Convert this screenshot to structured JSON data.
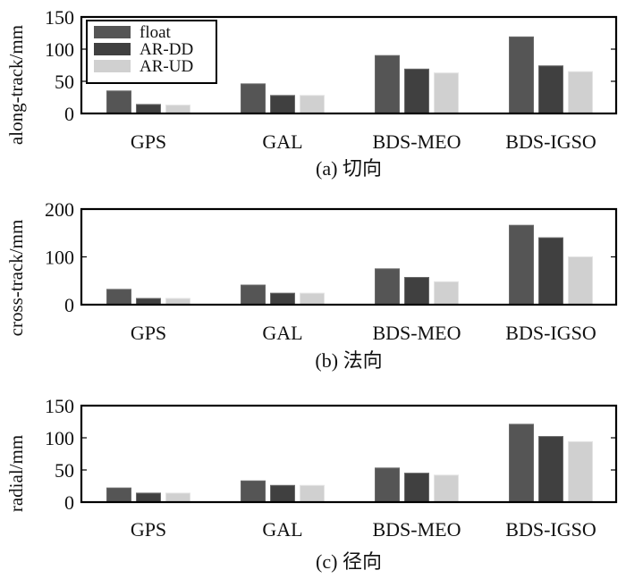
{
  "chart_data": [
    {
      "type": "bar",
      "title": "",
      "caption": "(a) 切向",
      "xlabel": "",
      "ylabel": "along-track/mm",
      "ylim": [
        0,
        150
      ],
      "yticks": [
        0,
        50,
        100,
        150
      ],
      "categories": [
        "GPS",
        "GAL",
        "BDS-MEO",
        "BDS-IGSO"
      ],
      "legend": {
        "placement": "top-left",
        "entries": [
          "float",
          "AR-DD",
          "AR-UD"
        ]
      },
      "series": [
        {
          "name": "float",
          "color": "#555555",
          "values": [
            35,
            46,
            90,
            119
          ]
        },
        {
          "name": "AR-DD",
          "color": "#404040",
          "values": [
            14,
            28,
            69,
            74
          ]
        },
        {
          "name": "AR-UD",
          "color": "#d0d0d0",
          "values": [
            13,
            28,
            63,
            65
          ]
        }
      ],
      "grid": false
    },
    {
      "type": "bar",
      "title": "",
      "caption": "(b) 法向",
      "xlabel": "",
      "ylabel": "cross-track/mm",
      "ylim": [
        0,
        200
      ],
      "yticks": [
        0,
        100,
        200
      ],
      "categories": [
        "GPS",
        "GAL",
        "BDS-MEO",
        "BDS-IGSO"
      ],
      "series": [
        {
          "name": "float",
          "color": "#555555",
          "values": [
            32,
            41,
            75,
            166
          ]
        },
        {
          "name": "AR-DD",
          "color": "#404040",
          "values": [
            13,
            24,
            57,
            140
          ]
        },
        {
          "name": "AR-UD",
          "color": "#d0d0d0",
          "values": [
            13,
            24,
            48,
            100
          ]
        }
      ],
      "grid": false
    },
    {
      "type": "bar",
      "title": "",
      "caption": "(c) 径向",
      "xlabel": "",
      "ylabel": "radial/mm",
      "ylim": [
        0,
        150
      ],
      "yticks": [
        0,
        50,
        100,
        150
      ],
      "categories": [
        "GPS",
        "GAL",
        "BDS-MEO",
        "BDS-IGSO"
      ],
      "series": [
        {
          "name": "float",
          "color": "#555555",
          "values": [
            22,
            33,
            53,
            121
          ]
        },
        {
          "name": "AR-DD",
          "color": "#404040",
          "values": [
            14,
            26,
            45,
            102
          ]
        },
        {
          "name": "AR-UD",
          "color": "#d0d0d0",
          "values": [
            14,
            26,
            42,
            94
          ]
        }
      ],
      "grid": false
    }
  ]
}
